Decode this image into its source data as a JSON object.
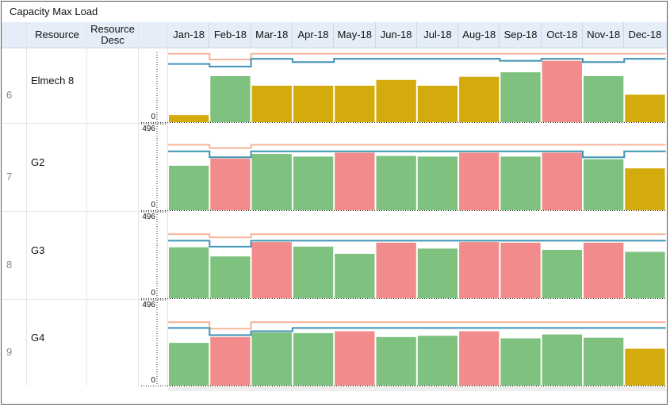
{
  "title": "Capacity Max Load",
  "columns": {
    "resource": "Resource",
    "resource_desc_line1": "Resource",
    "resource_desc_line2": "Desc"
  },
  "months": [
    "Jan-18",
    "Feb-18",
    "Mar-18",
    "Apr-18",
    "May-18",
    "Jun-18",
    "Jul-18",
    "Aug-18",
    "Sep-18",
    "Oct-18",
    "Nov-18",
    "Dec-18"
  ],
  "colors": {
    "green": "#7fc17f",
    "red": "#f28b8b",
    "gold": "#d4ab0d",
    "max_line": "#f5b59a",
    "cap_line": "#3f93b6",
    "header_bg": "#e5eef8"
  },
  "chart_data": {
    "type": "bar",
    "y_axis_max_label": "496",
    "y_axis_min_label": "0",
    "rows": [
      {
        "index": "6",
        "resource": "Elmech 8",
        "resource_desc": "",
        "show_max_label": false,
        "ylim": [
          0,
          496
        ],
        "values": [
          55,
          360,
          285,
          285,
          285,
          330,
          285,
          355,
          390,
          480,
          360,
          215
        ],
        "status": [
          "gold",
          "green",
          "gold",
          "gold",
          "gold",
          "gold",
          "gold",
          "gold",
          "green",
          "red",
          "green",
          "gold"
        ],
        "max_line": [
          535,
          490,
          535,
          535,
          535,
          535,
          535,
          535,
          535,
          535,
          535,
          535
        ],
        "cap_line": [
          455,
          435,
          495,
          470,
          495,
          495,
          495,
          495,
          480,
          495,
          470,
          495
        ]
      },
      {
        "index": "7",
        "resource": "G2",
        "resource_desc": "",
        "show_max_label": true,
        "ylim": [
          0,
          496
        ],
        "values": [
          340,
          395,
          430,
          410,
          440,
          415,
          410,
          440,
          410,
          440,
          390,
          320
        ],
        "status": [
          "green",
          "red",
          "green",
          "green",
          "red",
          "green",
          "green",
          "red",
          "green",
          "red",
          "green",
          "gold"
        ],
        "max_line": [
          500,
          475,
          500,
          500,
          500,
          500,
          500,
          500,
          500,
          500,
          500,
          500
        ],
        "cap_line": [
          450,
          405,
          450,
          450,
          450,
          450,
          450,
          450,
          450,
          450,
          405,
          450
        ]
      },
      {
        "index": "8",
        "resource": "G3",
        "resource_desc": "",
        "show_max_label": true,
        "ylim": [
          0,
          496
        ],
        "values": [
          390,
          320,
          430,
          395,
          340,
          425,
          380,
          430,
          425,
          370,
          425,
          355
        ],
        "status": [
          "green",
          "green",
          "red",
          "green",
          "green",
          "red",
          "green",
          "red",
          "red",
          "green",
          "red",
          "green"
        ],
        "max_line": [
          490,
          465,
          490,
          490,
          490,
          490,
          490,
          490,
          490,
          490,
          490,
          490
        ],
        "cap_line": [
          440,
          395,
          440,
          440,
          440,
          440,
          440,
          440,
          440,
          440,
          440,
          440
        ]
      },
      {
        "index": "9",
        "resource": "G4",
        "resource_desc": "",
        "show_max_label": true,
        "ylim": [
          0,
          496
        ],
        "values": [
          330,
          375,
          410,
          405,
          420,
          375,
          385,
          420,
          365,
          395,
          370,
          285
        ],
        "status": [
          "green",
          "red",
          "green",
          "green",
          "red",
          "green",
          "green",
          "red",
          "green",
          "green",
          "green",
          "gold"
        ],
        "max_line": [
          490,
          440,
          490,
          490,
          490,
          490,
          490,
          490,
          490,
          490,
          490,
          490
        ],
        "cap_line": [
          445,
          390,
          420,
          445,
          445,
          445,
          445,
          445,
          445,
          445,
          445,
          445
        ]
      }
    ]
  }
}
